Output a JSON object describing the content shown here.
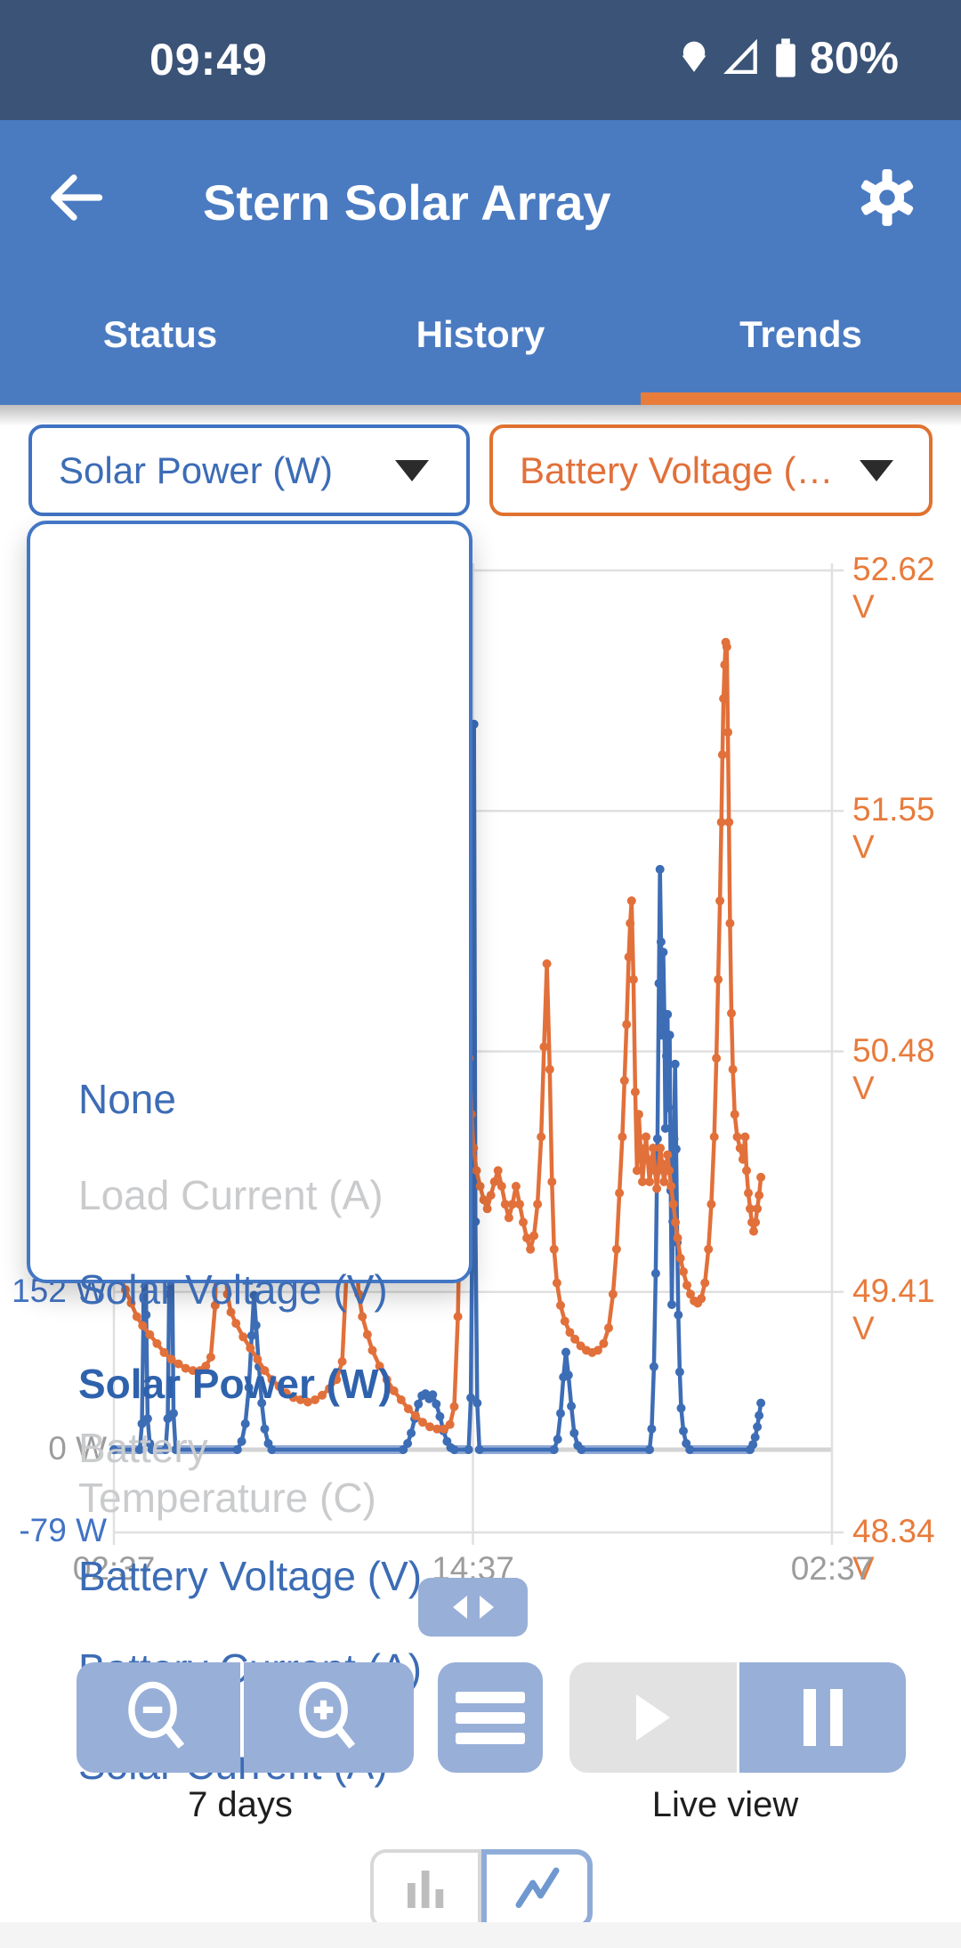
{
  "status_bar": {
    "time": "09:49",
    "battery_pct": "80%"
  },
  "header": {
    "title": "Stern Solar Array",
    "tabs": [
      {
        "label": "Status",
        "active": false
      },
      {
        "label": "History",
        "active": false
      },
      {
        "label": "Trends",
        "active": true
      }
    ]
  },
  "selectors": {
    "left": {
      "value": "Solar Power (W)",
      "color": "#3C6CB5"
    },
    "right": {
      "value": "Battery Voltage (…",
      "color": "#E2703A"
    }
  },
  "dropdown": {
    "items": [
      {
        "label": "None",
        "state": "enabled"
      },
      {
        "label": "Load Current (A)",
        "state": "disabled"
      },
      {
        "label": "Solar Voltage (V)",
        "state": "enabled"
      },
      {
        "label": "Solar Power (W)",
        "state": "selected"
      },
      {
        "label": "Battery Temperature (C)",
        "state": "disabled"
      },
      {
        "label": "Battery Voltage (V)",
        "state": "enabled"
      },
      {
        "label": "Battery Current (A)",
        "state": "enabled"
      },
      {
        "label": "Solar Current (A)",
        "state": "enabled"
      }
    ]
  },
  "controls": {
    "range_label": "7 days",
    "live_label": "Live view"
  },
  "chart_data": {
    "type": "line",
    "title": "",
    "x_axis": {
      "tick_labels": [
        "02:37",
        "14:37",
        "02:37"
      ],
      "tick_positions_pct": [
        0,
        50,
        100
      ],
      "range": "7 days"
    },
    "y_right": {
      "unit": "V",
      "tick_labels": [
        "52.62 V",
        "51.55 V",
        "50.48 V",
        "49.41 V",
        "48.34 V"
      ],
      "tick_values": [
        52.62,
        51.55,
        50.48,
        49.41,
        48.34
      ]
    },
    "y_left": {
      "unit": "W",
      "ticks": [
        {
          "label": "152 W",
          "value": 152,
          "color": "#4273C4"
        },
        {
          "label": "0 W",
          "value": 0,
          "color": "#9c9c9c"
        },
        {
          "label": "-79 W",
          "value": -79,
          "color": "#4273C4"
        }
      ]
    },
    "legend_position": "none",
    "grid": true,
    "series": [
      {
        "name": "Solar Power (W)",
        "axis": "left",
        "color": "#3D6DB5",
        "baseline_color": "#93ACD6",
        "points": [
          [
            0,
            0
          ],
          [
            3.6,
            0
          ],
          [
            3.9,
            25
          ],
          [
            4.1,
            120
          ],
          [
            4.3,
            520
          ],
          [
            4.5,
            130
          ],
          [
            4.7,
            30
          ],
          [
            5.0,
            6
          ],
          [
            5.3,
            0
          ],
          [
            7.2,
            0
          ],
          [
            7.5,
            30
          ],
          [
            7.7,
            150
          ],
          [
            7.9,
            600
          ],
          [
            8.1,
            180
          ],
          [
            8.3,
            35
          ],
          [
            8.6,
            0
          ],
          [
            17.2,
            0
          ],
          [
            17.8,
            8
          ],
          [
            18.3,
            25
          ],
          [
            18.8,
            60
          ],
          [
            19.2,
            110
          ],
          [
            19.5,
            149
          ],
          [
            19.8,
            120
          ],
          [
            20.2,
            80
          ],
          [
            20.6,
            45
          ],
          [
            21.0,
            20
          ],
          [
            21.5,
            6
          ],
          [
            22.0,
            0
          ],
          [
            40.3,
            0
          ],
          [
            40.9,
            6
          ],
          [
            41.4,
            16
          ],
          [
            41.9,
            30
          ],
          [
            42.4,
            44
          ],
          [
            42.9,
            52
          ],
          [
            43.4,
            54
          ],
          [
            43.9,
            49
          ],
          [
            44.4,
            53
          ],
          [
            44.9,
            44
          ],
          [
            45.4,
            32
          ],
          [
            45.9,
            18
          ],
          [
            46.4,
            8
          ],
          [
            46.9,
            2
          ],
          [
            47.4,
            0
          ],
          [
            49.4,
            0
          ],
          [
            49.7,
            50
          ],
          [
            49.95,
            250
          ],
          [
            50.15,
            700
          ],
          [
            50.35,
            220
          ],
          [
            50.6,
            45
          ],
          [
            50.9,
            0
          ],
          [
            61.3,
            0
          ],
          [
            61.8,
            10
          ],
          [
            62.2,
            35
          ],
          [
            62.6,
            70
          ],
          [
            62.95,
            94
          ],
          [
            63.3,
            72
          ],
          [
            63.7,
            42
          ],
          [
            64.1,
            16
          ],
          [
            64.6,
            4
          ],
          [
            65.1,
            0
          ],
          [
            74.6,
            0
          ],
          [
            74.9,
            20
          ],
          [
            75.2,
            80
          ],
          [
            75.45,
            170
          ],
          [
            75.7,
            300
          ],
          [
            75.9,
            450
          ],
          [
            76.05,
            560
          ],
          [
            76.2,
            490
          ],
          [
            76.35,
            400
          ],
          [
            76.5,
            480
          ],
          [
            76.65,
            420
          ],
          [
            76.8,
            310
          ],
          [
            76.95,
            380
          ],
          [
            77.1,
            420
          ],
          [
            77.25,
            330
          ],
          [
            77.4,
            400
          ],
          [
            77.55,
            250
          ],
          [
            77.7,
            140
          ],
          [
            77.85,
            220
          ],
          [
            78.0,
            300
          ],
          [
            78.15,
            372
          ],
          [
            78.3,
            290
          ],
          [
            78.45,
            200
          ],
          [
            78.6,
            130
          ],
          [
            78.8,
            75
          ],
          [
            79.0,
            40
          ],
          [
            79.3,
            18
          ],
          [
            79.7,
            6
          ],
          [
            80.2,
            0
          ],
          [
            88.6,
            0
          ],
          [
            89.0,
            5
          ],
          [
            89.3,
            12
          ],
          [
            89.6,
            22
          ],
          [
            89.85,
            33
          ],
          [
            90.1,
            45
          ]
        ]
      },
      {
        "name": "Battery Voltage (V)",
        "axis": "right",
        "color": "#E2703A",
        "points": [
          [
            0,
            49.55
          ],
          [
            0.8,
            49.48
          ],
          [
            1.6,
            49.42
          ],
          [
            2.4,
            49.36
          ],
          [
            3.2,
            49.3
          ],
          [
            4,
            49.26
          ],
          [
            5,
            49.22
          ],
          [
            6,
            49.18
          ],
          [
            7,
            49.14
          ],
          [
            8,
            49.11
          ],
          [
            9,
            49.09
          ],
          [
            10,
            49.07
          ],
          [
            11,
            49.06
          ],
          [
            12,
            49.06
          ],
          [
            12.8,
            49.08
          ],
          [
            13.5,
            49.12
          ],
          [
            14.1,
            49.35
          ],
          [
            14.5,
            49.9
          ],
          [
            14.8,
            50.28
          ],
          [
            15.1,
            49.95
          ],
          [
            15.4,
            49.6
          ],
          [
            15.8,
            49.4
          ],
          [
            16.3,
            49.32
          ],
          [
            17,
            49.27
          ],
          [
            18,
            49.21
          ],
          [
            19,
            49.16
          ],
          [
            20,
            49.11
          ],
          [
            21,
            49.06
          ],
          [
            22,
            49.02
          ],
          [
            23,
            48.99
          ],
          [
            24,
            48.96
          ],
          [
            25,
            48.94
          ],
          [
            26,
            48.93
          ],
          [
            27,
            48.92
          ],
          [
            28,
            48.93
          ],
          [
            29,
            48.95
          ],
          [
            30,
            48.98
          ],
          [
            31,
            49.02
          ],
          [
            31.8,
            49.1
          ],
          [
            32.4,
            49.5
          ],
          [
            32.8,
            50.1
          ],
          [
            33.1,
            50.45
          ],
          [
            33.4,
            50.05
          ],
          [
            33.7,
            49.6
          ],
          [
            34.1,
            49.4
          ],
          [
            34.6,
            49.3
          ],
          [
            35.3,
            49.22
          ],
          [
            36,
            49.15
          ],
          [
            37,
            49.08
          ],
          [
            38,
            49.02
          ],
          [
            39,
            48.97
          ],
          [
            40,
            48.93
          ],
          [
            41,
            48.89
          ],
          [
            42,
            48.86
          ],
          [
            43,
            48.83
          ],
          [
            44,
            48.81
          ],
          [
            45,
            48.8
          ],
          [
            46,
            48.8
          ],
          [
            46.8,
            48.82
          ],
          [
            47.4,
            48.9
          ],
          [
            47.9,
            49.3
          ],
          [
            48.3,
            50.0
          ],
          [
            48.6,
            50.6
          ],
          [
            48.9,
            50.9
          ],
          [
            49.2,
            50.72
          ],
          [
            49.5,
            50.45
          ],
          [
            49.8,
            50.2
          ],
          [
            50.1,
            50.05
          ],
          [
            50.5,
            49.95
          ],
          [
            51,
            49.88
          ],
          [
            51.5,
            49.82
          ],
          [
            52,
            49.78
          ],
          [
            52.5,
            49.84
          ],
          [
            53,
            49.9
          ],
          [
            53.5,
            49.95
          ],
          [
            54,
            49.88
          ],
          [
            54.5,
            49.8
          ],
          [
            55,
            49.74
          ],
          [
            55.5,
            49.8
          ],
          [
            56,
            49.88
          ],
          [
            56.5,
            49.8
          ],
          [
            57,
            49.72
          ],
          [
            57.5,
            49.65
          ],
          [
            58,
            49.6
          ],
          [
            58.5,
            49.66
          ],
          [
            59,
            49.8
          ],
          [
            59.5,
            50.1
          ],
          [
            59.9,
            50.5
          ],
          [
            60.3,
            50.87
          ],
          [
            60.7,
            50.4
          ],
          [
            61,
            49.9
          ],
          [
            61.3,
            49.6
          ],
          [
            61.7,
            49.45
          ],
          [
            62.2,
            49.35
          ],
          [
            62.8,
            49.28
          ],
          [
            63.5,
            49.23
          ],
          [
            64.2,
            49.2
          ],
          [
            65,
            49.17
          ],
          [
            65.8,
            49.15
          ],
          [
            66.6,
            49.14
          ],
          [
            67.4,
            49.15
          ],
          [
            68.2,
            49.18
          ],
          [
            68.9,
            49.25
          ],
          [
            69.5,
            49.4
          ],
          [
            70,
            49.6
          ],
          [
            70.4,
            49.85
          ],
          [
            70.8,
            50.1
          ],
          [
            71.1,
            50.35
          ],
          [
            71.4,
            50.6
          ],
          [
            71.7,
            50.9
          ],
          [
            71.9,
            51.05
          ],
          [
            72.1,
            51.15
          ],
          [
            72.35,
            50.8
          ],
          [
            72.6,
            50.3
          ],
          [
            72.85,
            49.95
          ],
          [
            73.1,
            50.2
          ],
          [
            73.35,
            50.05
          ],
          [
            73.6,
            49.9
          ],
          [
            73.85,
            50.0
          ],
          [
            74.1,
            50.1
          ],
          [
            74.35,
            50.0
          ],
          [
            74.6,
            49.9
          ],
          [
            74.85,
            49.97
          ],
          [
            75.1,
            50.05
          ],
          [
            75.35,
            49.95
          ],
          [
            75.6,
            49.87
          ],
          [
            75.85,
            49.95
          ],
          [
            76.1,
            50.05
          ],
          [
            76.35,
            49.98
          ],
          [
            76.6,
            49.9
          ],
          [
            76.85,
            49.95
          ],
          [
            77.1,
            50.02
          ],
          [
            77.35,
            49.95
          ],
          [
            77.6,
            49.88
          ],
          [
            77.9,
            49.8
          ],
          [
            78.2,
            49.72
          ],
          [
            78.5,
            49.65
          ],
          [
            78.9,
            49.56
          ],
          [
            79.3,
            49.5
          ],
          [
            79.8,
            49.44
          ],
          [
            80.3,
            49.4
          ],
          [
            80.8,
            49.37
          ],
          [
            81.3,
            49.36
          ],
          [
            81.8,
            49.38
          ],
          [
            82.3,
            49.45
          ],
          [
            82.8,
            49.6
          ],
          [
            83.2,
            49.8
          ],
          [
            83.6,
            50.1
          ],
          [
            83.9,
            50.45
          ],
          [
            84.15,
            50.8
          ],
          [
            84.4,
            51.15
          ],
          [
            84.6,
            51.5
          ],
          [
            84.75,
            51.8
          ],
          [
            84.9,
            52.05
          ],
          [
            85.05,
            52.2
          ],
          [
            85.2,
            52.3
          ],
          [
            85.35,
            52.28
          ],
          [
            85.5,
            51.9
          ],
          [
            85.65,
            51.5
          ],
          [
            85.8,
            51.05
          ],
          [
            86.0,
            50.65
          ],
          [
            86.2,
            50.4
          ],
          [
            86.45,
            50.2
          ],
          [
            86.8,
            50.1
          ],
          [
            87.2,
            50.05
          ],
          [
            87.6,
            50.0
          ],
          [
            87.9,
            50.1
          ],
          [
            88.1,
            49.95
          ],
          [
            88.35,
            49.85
          ],
          [
            88.6,
            49.78
          ],
          [
            88.85,
            49.72
          ],
          [
            89.1,
            49.68
          ],
          [
            89.35,
            49.72
          ],
          [
            89.6,
            49.78
          ],
          [
            89.85,
            49.84
          ],
          [
            90.1,
            49.92
          ]
        ]
      }
    ]
  }
}
